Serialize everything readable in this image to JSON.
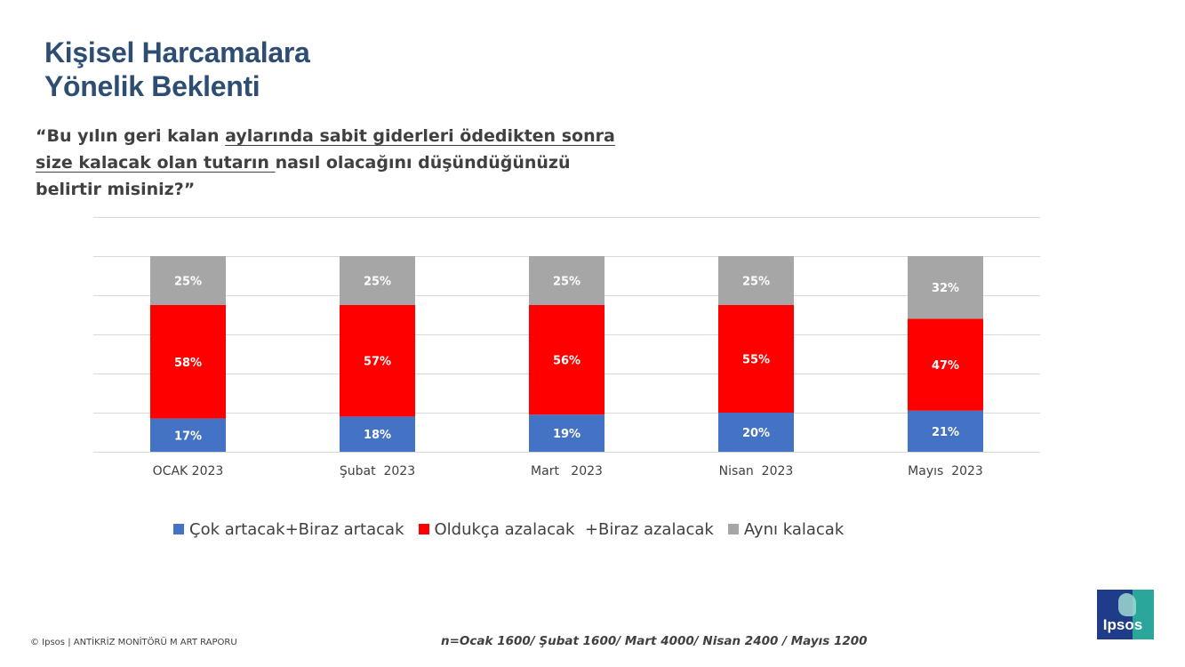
{
  "title": {
    "line1": "Kişisel Harcamalara",
    "line2": "Yönelik Beklenti"
  },
  "question": {
    "part1": "“Bu yılın geri kalan ",
    "part2_underlined": "aylarında sabit giderleri ödedikten sonra size kalacak olan tutarın ",
    "part3": "nasıl olacağını düşündüğünüzü belirtir misiniz?”"
  },
  "colors": {
    "blue": "#4472c4",
    "red": "#ff0000",
    "gray": "#a6a6a6",
    "title": "#2e4d73",
    "text": "#404040"
  },
  "chart_data": {
    "type": "bar",
    "stacked": true,
    "categories": [
      "OCAK 2023",
      "Şubat  2023",
      "Mart   2023",
      "Nisan  2023",
      "Mayıs  2023"
    ],
    "series": [
      {
        "name": "Çok artacak+Biraz artacak",
        "color": "#4472c4",
        "values": [
          17,
          18,
          19,
          20,
          21
        ]
      },
      {
        "name": "Oldukça azalacak  +Biraz azalacak",
        "color": "#ff0000",
        "values": [
          58,
          57,
          56,
          55,
          47
        ]
      },
      {
        "name": "Aynı kalacak",
        "color": "#a6a6a6",
        "values": [
          25,
          25,
          25,
          25,
          32
        ]
      }
    ],
    "ylim": [
      0,
      120
    ],
    "grid": true,
    "legend_position": "bottom",
    "data_labels": true
  },
  "footer": {
    "copyright": "© Ipsos | ANTİKRİZ MONİTÖRÜ M ART  RAPORU",
    "sample_note": "n=Ocak 1600/ Şubat 1600/ Mart 4000/ Nisan 2400 / Mayıs 1200"
  },
  "logo": {
    "text": "Ipsos"
  }
}
